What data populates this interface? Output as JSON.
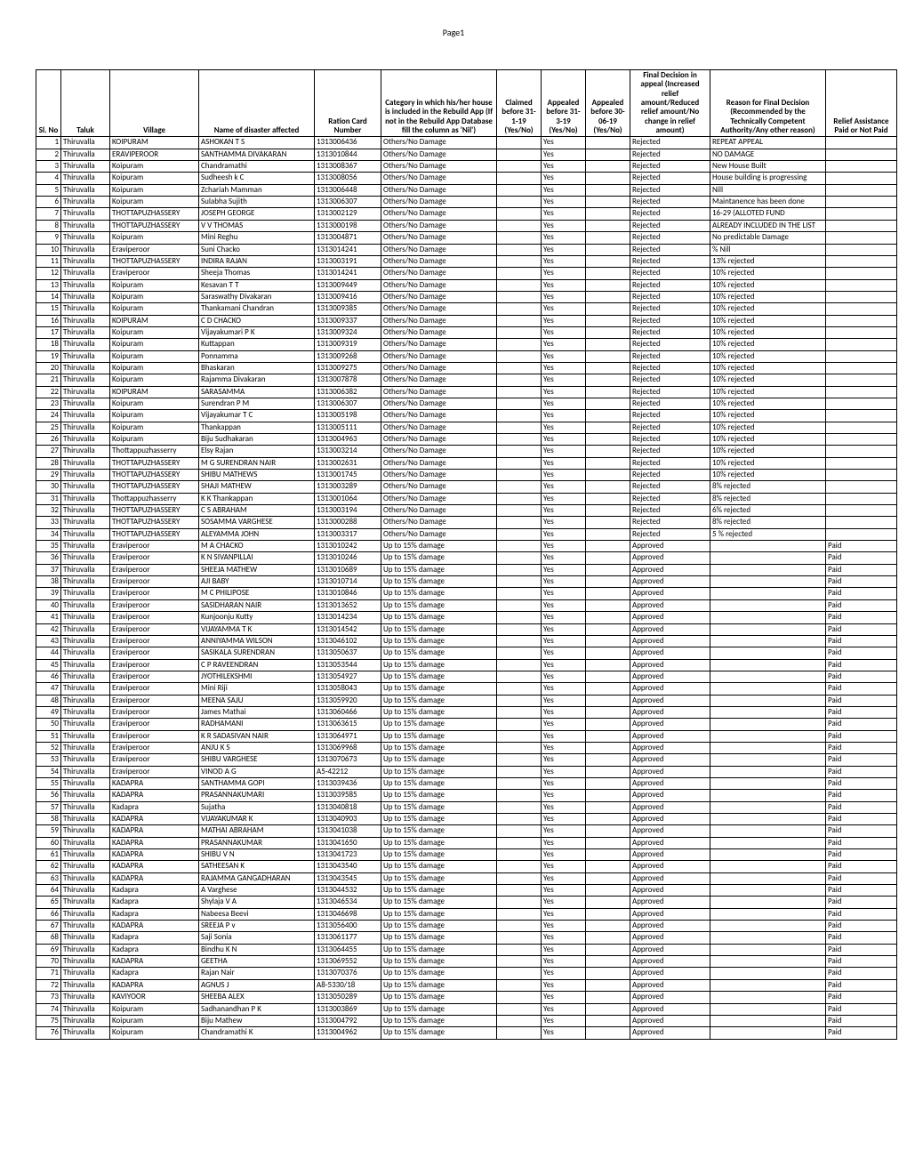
{
  "page_label": "Page1",
  "columns": [
    "Sl. No",
    "Taluk",
    "Village",
    "Name of disaster affected",
    "Ration Card Number",
    "Category in which his/her house is included in the Rebuild App (If not in the Rebuild App Database fill the column as 'Nil')",
    "Claimed before 31-1-19 (Yes/No)",
    "Appealed before 31-3-19 (Yes/No)",
    "Appealed before 30-06-19 (Yes/No)",
    "Final Decision in appeal (Increased relief amount/Reduced relief amount/No change in relief amount)",
    "Reason for Final Decision (Recommended by the Technically Competent Authority/Any other reason)",
    "Relief Assistance Paid or Not Paid"
  ],
  "rows": [
    [
      1,
      "Thiruvalla",
      "KOIPURAM",
      "ASHOKAN T S",
      "1313006436",
      "Others/No Damage",
      "",
      "Yes",
      "",
      "Rejected",
      "REPEAT APPEAL",
      ""
    ],
    [
      2,
      "Thiruvalla",
      "ERAVIPEROOR",
      "SANTHAMMA DIVAKARAN",
      "1313010844",
      "Others/No Damage",
      "",
      "Yes",
      "",
      "Rejected",
      "NO DAMAGE",
      ""
    ],
    [
      3,
      "Thiruvalla",
      "Koipuram",
      "Chandramathi",
      "1313008367",
      "Others/No Damage",
      "",
      "Yes",
      "",
      "Rejected",
      "New House Built",
      ""
    ],
    [
      4,
      "Thiruvalla",
      "Koipuram",
      "Sudheesh k C",
      "1313008056",
      "Others/No Damage",
      "",
      "Yes",
      "",
      "Rejected",
      "House building is progressing",
      ""
    ],
    [
      5,
      "Thiruvalla",
      "Koipuram",
      "Zchariah Mamman",
      "1313006448",
      "Others/No Damage",
      "",
      "Yes",
      "",
      "Rejected",
      "Nill",
      ""
    ],
    [
      6,
      "Thiruvalla",
      "Koipuram",
      "Sulabha Sujith",
      "1313006307",
      "Others/No Damage",
      "",
      "Yes",
      "",
      "Rejected",
      "Maintanence has been done",
      ""
    ],
    [
      7,
      "Thiruvalla",
      "THOTTAPUZHASSERY",
      "JOSEPH GEORGE",
      "1313002129",
      "Others/No Damage",
      "",
      "Yes",
      "",
      "Rejected",
      "16-29 (ALLOTED FUND",
      ""
    ],
    [
      8,
      "Thiruvalla",
      "THOTTAPUZHASSERY",
      "V V THOMAS",
      "1313000198",
      "Others/No Damage",
      "",
      "Yes",
      "",
      "Rejected",
      "ALREADY INCLUDED IN THE LIST",
      ""
    ],
    [
      9,
      "Thiruvalla",
      "Koipuram",
      "Mini Reghu",
      "1313004871",
      "Others/No Damage",
      "",
      "Yes",
      "",
      "Rejected",
      "No predictable Damage",
      ""
    ],
    [
      10,
      "Thiruvalla",
      "Eraviperoor",
      "Suni Chacko",
      "1313014241",
      "Others/No Damage",
      "",
      "Yes",
      "",
      "Rejected",
      "% Nill",
      ""
    ],
    [
      11,
      "Thiruvalla",
      "THOTTAPUZHASSERY",
      "INDIRA RAJAN",
      "1313003191",
      "Others/No Damage",
      "",
      "Yes",
      "",
      "Rejected",
      "13% rejected",
      ""
    ],
    [
      12,
      "Thiruvalla",
      "Eraviperoor",
      "Sheeja Thomas",
      "1313014241",
      "Others/No Damage",
      "",
      "Yes",
      "",
      "Rejected",
      "10% rejected",
      ""
    ],
    [
      13,
      "Thiruvalla",
      "Koipuram",
      "Kesavan T T",
      "1313009449",
      "Others/No Damage",
      "",
      "Yes",
      "",
      "Rejected",
      "10% rejected",
      ""
    ],
    [
      14,
      "Thiruvalla",
      "Koipuram",
      "Saraswathy Divakaran",
      "1313009416",
      "Others/No Damage",
      "",
      "Yes",
      "",
      "Rejected",
      "10% rejected",
      ""
    ],
    [
      15,
      "Thiruvalla",
      "Koipuram",
      "Thankamani Chandran",
      "1313009385",
      "Others/No Damage",
      "",
      "Yes",
      "",
      "Rejected",
      "10% rejected",
      ""
    ],
    [
      16,
      "Thiruvalla",
      "KOIPURAM",
      "C D CHACKO",
      "1313009337",
      "Others/No Damage",
      "",
      "Yes",
      "",
      "Rejected",
      "10% rejected",
      ""
    ],
    [
      17,
      "Thiruvalla",
      "Koipuram",
      "Vijayakumari P K",
      "1313009324",
      "Others/No Damage",
      "",
      "Yes",
      "",
      "Rejected",
      "10% rejected",
      ""
    ],
    [
      18,
      "Thiruvalla",
      "Koipuram",
      "Kuttappan",
      "1313009319",
      "Others/No Damage",
      "",
      "Yes",
      "",
      "Rejected",
      "10% rejected",
      ""
    ],
    [
      19,
      "Thiruvalla",
      "Koipuram",
      "Ponnamma",
      "1313009268",
      "Others/No Damage",
      "",
      "Yes",
      "",
      "Rejected",
      "10% rejected",
      ""
    ],
    [
      20,
      "Thiruvalla",
      "Koipuram",
      "Bhaskaran",
      "1313009275",
      "Others/No Damage",
      "",
      "Yes",
      "",
      "Rejected",
      "10% rejected",
      ""
    ],
    [
      21,
      "Thiruvalla",
      "Koipuram",
      "Rajamma Divakaran",
      "1313007878",
      "Others/No Damage",
      "",
      "Yes",
      "",
      "Rejected",
      "10% rejected",
      ""
    ],
    [
      22,
      "Thiruvalla",
      "KOIPURAM",
      "SARASAMMA",
      "1313006382",
      "Others/No Damage",
      "",
      "Yes",
      "",
      "Rejected",
      "10% rejected",
      ""
    ],
    [
      23,
      "Thiruvalla",
      "Koipuram",
      "Surendran P M",
      "1313006307",
      "Others/No Damage",
      "",
      "Yes",
      "",
      "Rejected",
      "10% rejected",
      ""
    ],
    [
      24,
      "Thiruvalla",
      "Koipuram",
      "Vijayakumar T C",
      "1313005198",
      "Others/No Damage",
      "",
      "Yes",
      "",
      "Rejected",
      "10% rejected",
      ""
    ],
    [
      25,
      "Thiruvalla",
      "Koipuram",
      "Thankappan",
      "1313005111",
      "Others/No Damage",
      "",
      "Yes",
      "",
      "Rejected",
      "10% rejected",
      ""
    ],
    [
      26,
      "Thiruvalla",
      "Koipuram",
      "Biju Sudhakaran",
      "1313004963",
      "Others/No Damage",
      "",
      "Yes",
      "",
      "Rejected",
      "10% rejected",
      ""
    ],
    [
      27,
      "Thiruvalla",
      "Thottappuzhasserry",
      "Elsy Rajan",
      "1313003214",
      "Others/No Damage",
      "",
      "Yes",
      "",
      "Rejected",
      "10% rejected",
      ""
    ],
    [
      28,
      "Thiruvalla",
      "THOTTAPUZHASSERY",
      "M G SURENDRAN NAIR",
      "1313002631",
      "Others/No Damage",
      "",
      "Yes",
      "",
      "Rejected",
      "10% rejected",
      ""
    ],
    [
      29,
      "Thiruvalla",
      "THOTTAPUZHASSERY",
      "SHIBU MATHEWS",
      "1313001745",
      "Others/No Damage",
      "",
      "Yes",
      "",
      "Rejected",
      "10% rejected",
      ""
    ],
    [
      30,
      "Thiruvalla",
      "THOTTAPUZHASSERY",
      "SHAJI MATHEW",
      "1313003289",
      "Others/No Damage",
      "",
      "Yes",
      "",
      "Rejected",
      "8% rejected",
      ""
    ],
    [
      31,
      "Thiruvalla",
      "Thottappuzhasserry",
      "K K Thankappan",
      "1313001064",
      "Others/No Damage",
      "",
      "Yes",
      "",
      "Rejected",
      "8% rejected",
      ""
    ],
    [
      32,
      "Thiruvalla",
      "THOTTAPUZHASSERY",
      "C S ABRAHAM",
      "1313003194",
      "Others/No Damage",
      "",
      "Yes",
      "",
      "Rejected",
      "6% rejected",
      ""
    ],
    [
      33,
      "Thiruvalla",
      "THOTTAPUZHASSERY",
      "SOSAMMA VARGHESE",
      "1313000288",
      "Others/No Damage",
      "",
      "Yes",
      "",
      "Rejected",
      "8% rejected",
      ""
    ],
    [
      34,
      "Thiruvalla",
      "THOTTAPUZHASSERY",
      "ALEYAMMA JOHN",
      "1313003317",
      "Others/No Damage",
      "",
      "Yes",
      "",
      "Rejected",
      "5 % rejected",
      ""
    ],
    [
      35,
      "Thiruvalla",
      "Eraviperoor",
      "M A CHACKO",
      "1313010242",
      "Up to 15% damage",
      "",
      "Yes",
      "",
      "Approved",
      "",
      "Paid"
    ],
    [
      36,
      "Thiruvalla",
      "Eraviperoor",
      "K N SIVANPILLAI",
      "1313010246",
      "Up to 15% damage",
      "",
      "Yes",
      "",
      "Approved",
      "",
      "Paid"
    ],
    [
      37,
      "Thiruvalla",
      "Eraviperoor",
      "SHEEJA MATHEW",
      "1313010689",
      "Up to 15% damage",
      "",
      "Yes",
      "",
      "Approved",
      "",
      "Paid"
    ],
    [
      38,
      "Thiruvalla",
      "Eraviperoor",
      "AJI BABY",
      "1313010714",
      "Up to 15% damage",
      "",
      "Yes",
      "",
      "Approved",
      "",
      "Paid"
    ],
    [
      39,
      "Thiruvalla",
      "Eraviperoor",
      "M C PHILIPOSE",
      "1313010846",
      "Up to 15% damage",
      "",
      "Yes",
      "",
      "Approved",
      "",
      "Paid"
    ],
    [
      40,
      "Thiruvalla",
      "Eraviperoor",
      "SASIDHARAN NAIR",
      "1313013652",
      "Up to 15% damage",
      "",
      "Yes",
      "",
      "Approved",
      "",
      "Paid"
    ],
    [
      41,
      "Thiruvalla",
      "Eraviperoor",
      "Kunjoonju Kutty",
      "1313014234",
      "Up to 15% damage",
      "",
      "Yes",
      "",
      "Approved",
      "",
      "Paid"
    ],
    [
      42,
      "Thiruvalla",
      "Eraviperoor",
      "VIJAYAMMA T K",
      "1313014542",
      "Up to 15% damage",
      "",
      "Yes",
      "",
      "Approved",
      "",
      "Paid"
    ],
    [
      43,
      "Thiruvalla",
      "Eraviperoor",
      "ANNIYAMMA WILSON",
      "1313046102",
      "Up to 15% damage",
      "",
      "Yes",
      "",
      "Approved",
      "",
      "Paid"
    ],
    [
      44,
      "Thiruvalla",
      "Eraviperoor",
      "SASIKALA SURENDRAN",
      "1313050637",
      "Up to 15% damage",
      "",
      "Yes",
      "",
      "Approved",
      "",
      "Paid"
    ],
    [
      45,
      "Thiruvalla",
      "Eraviperoor",
      "C P RAVEENDRAN",
      "1313053544",
      "Up to 15% damage",
      "",
      "Yes",
      "",
      "Approved",
      "",
      "Paid"
    ],
    [
      46,
      "Thiruvalla",
      "Eraviperoor",
      "JYOTHILEKSHMI",
      "1313054927",
      "Up to 15% damage",
      "",
      "Yes",
      "",
      "Approved",
      "",
      "Paid"
    ],
    [
      47,
      "Thiruvalla",
      "Eraviperoor",
      "Mini Riji",
      "1313058043",
      "Up to 15% damage",
      "",
      "Yes",
      "",
      "Approved",
      "",
      "Paid"
    ],
    [
      48,
      "Thiruvalla",
      "Eraviperoor",
      "MEENA SAJU",
      "1313059920",
      "Up to 15% damage",
      "",
      "Yes",
      "",
      "Approved",
      "",
      "Paid"
    ],
    [
      49,
      "Thiruvalla",
      "Eraviperoor",
      "James Mathai",
      "1313060466",
      "Up to 15% damage",
      "",
      "Yes",
      "",
      "Approved",
      "",
      "Paid"
    ],
    [
      50,
      "Thiruvalla",
      "Eraviperoor",
      "RADHAMANI",
      "1313063615",
      "Up to 15% damage",
      "",
      "Yes",
      "",
      "Approved",
      "",
      "Paid"
    ],
    [
      51,
      "Thiruvalla",
      "Eraviperoor",
      "K R SADASIVAN NAIR",
      "1313064971",
      "Up to 15% damage",
      "",
      "Yes",
      "",
      "Approved",
      "",
      "Paid"
    ],
    [
      52,
      "Thiruvalla",
      "Eraviperoor",
      "ANJU K S",
      "1313069968",
      "Up to 15% damage",
      "",
      "Yes",
      "",
      "Approved",
      "",
      "Paid"
    ],
    [
      53,
      "Thiruvalla",
      "Eraviperoor",
      "SHIBU VARGHESE",
      "1313070673",
      "Up to 15% damage",
      "",
      "Yes",
      "",
      "Approved",
      "",
      "Paid"
    ],
    [
      54,
      "Thiruvalla",
      "Eraviperoor",
      "VINOD A G",
      "A5-42212",
      "Up to 15% damage",
      "",
      "Yes",
      "",
      "Approved",
      "",
      "Paid"
    ],
    [
      55,
      "Thiruvalla",
      "KADAPRA",
      "SANTHAMMA GOPI",
      "1313039436",
      "Up to 15% damage",
      "",
      "Yes",
      "",
      "Approved",
      "",
      "Paid"
    ],
    [
      56,
      "Thiruvalla",
      "KADAPRA",
      "PRASANNAKUMARI",
      "1313039585",
      "Up to 15% damage",
      "",
      "Yes",
      "",
      "Approved",
      "",
      "Paid"
    ],
    [
      57,
      "Thiruvalla",
      "Kadapra",
      "Sujatha",
      "1313040818",
      "Up to 15% damage",
      "",
      "Yes",
      "",
      "Approved",
      "",
      "Paid"
    ],
    [
      58,
      "Thiruvalla",
      "KADAPRA",
      "VIJAYAKUMAR K",
      "1313040903",
      "Up to 15% damage",
      "",
      "Yes",
      "",
      "Approved",
      "",
      "Paid"
    ],
    [
      59,
      "Thiruvalla",
      "KADAPRA",
      "MATHAI ABRAHAM",
      "1313041038",
      "Up to 15% damage",
      "",
      "Yes",
      "",
      "Approved",
      "",
      "Paid"
    ],
    [
      60,
      "Thiruvalla",
      "KADAPRA",
      "PRASANNAKUMAR",
      "1313041650",
      "Up to 15% damage",
      "",
      "Yes",
      "",
      "Approved",
      "",
      "Paid"
    ],
    [
      61,
      "Thiruvalla",
      "KADAPRA",
      "SHIBU V N",
      "1313041723",
      "Up to 15% damage",
      "",
      "Yes",
      "",
      "Approved",
      "",
      "Paid"
    ],
    [
      62,
      "Thiruvalla",
      "KADAPRA",
      "SATHEESAN K",
      "1313043540",
      "Up to 15% damage",
      "",
      "Yes",
      "",
      "Approved",
      "",
      "Paid"
    ],
    [
      63,
      "Thiruvalla",
      "KADAPRA",
      "RAJAMMA GANGADHARAN",
      "1313043545",
      "Up to 15% damage",
      "",
      "Yes",
      "",
      "Approved",
      "",
      "Paid"
    ],
    [
      64,
      "Thiruvalla",
      "Kadapra",
      "A Varghese",
      "1313044532",
      "Up to 15% damage",
      "",
      "Yes",
      "",
      "Approved",
      "",
      "Paid"
    ],
    [
      65,
      "Thiruvalla",
      "Kadapra",
      "Shylaja  V A",
      "1313046534",
      "Up to 15% damage",
      "",
      "Yes",
      "",
      "Approved",
      "",
      "Paid"
    ],
    [
      66,
      "Thiruvalla",
      "Kadapra",
      "Nabeesa Beevi",
      "1313046698",
      "Up to 15% damage",
      "",
      "Yes",
      "",
      "Approved",
      "",
      "Paid"
    ],
    [
      67,
      "Thiruvalla",
      "KADAPRA",
      "SREEJA P v",
      "1313056400",
      "Up to 15% damage",
      "",
      "Yes",
      "",
      "Approved",
      "",
      "Paid"
    ],
    [
      68,
      "Thiruvalla",
      "Kadapra",
      "Saji Sonia",
      "1313061177",
      "Up to 15% damage",
      "",
      "Yes",
      "",
      "Approved",
      "",
      "Paid"
    ],
    [
      69,
      "Thiruvalla",
      "Kadapra",
      "Bindhu K N",
      "1313064455",
      "Up to 15% damage",
      "",
      "Yes",
      "",
      "Approved",
      "",
      "Paid"
    ],
    [
      70,
      "Thiruvalla",
      "KADAPRA",
      "GEETHA",
      "1313069552",
      "Up to 15% damage",
      "",
      "Yes",
      "",
      "Approved",
      "",
      "Paid"
    ],
    [
      71,
      "Thiruvalla",
      "Kadapra",
      "Rajan Nair",
      "1313070376",
      "Up to 15% damage",
      "",
      "Yes",
      "",
      "Approved",
      "",
      "Paid"
    ],
    [
      72,
      "Thiruvalla",
      "KADAPRA",
      "AGNUS J",
      "A8-5330/18",
      "Up to 15% damage",
      "",
      "Yes",
      "",
      "Approved",
      "",
      "Paid"
    ],
    [
      73,
      "Thiruvalla",
      "KAVIYOOR",
      "SHEEBA ALEX",
      "1313050289",
      "Up to 15% damage",
      "",
      "Yes",
      "",
      "Approved",
      "",
      "Paid"
    ],
    [
      74,
      "Thiruvalla",
      "Koipuram",
      "Sadhanandhan P K",
      "1313003869",
      "Up to 15% damage",
      "",
      "Yes",
      "",
      "Approved",
      "",
      "Paid"
    ],
    [
      75,
      "Thiruvalla",
      "Koipuram",
      "Biju Mathew",
      "1313004792",
      "Up to 15% damage",
      "",
      "Yes",
      "",
      "Approved",
      "",
      "Paid"
    ],
    [
      76,
      "Thiruvalla",
      "Koipuram",
      "Chandramathi K",
      "1313004962",
      "Up to 15% damage",
      "",
      "Yes",
      "",
      "Approved",
      "",
      "Paid"
    ]
  ]
}
